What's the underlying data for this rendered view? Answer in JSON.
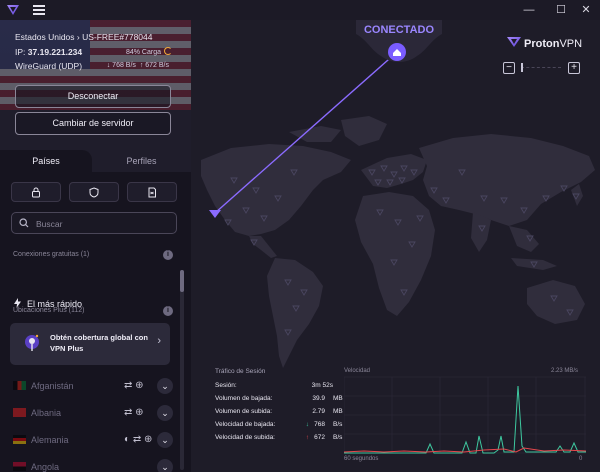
{
  "titlebar": {
    "minimize": "—",
    "maximize": "☐",
    "close": "✕"
  },
  "sidebar": {
    "server_line": "Estados Unidos › US-FREE#778044",
    "ip_label": "IP:",
    "ip_value": "37.19.221.234",
    "load": "84% Carga",
    "protocol": "WireGuard (UDP)",
    "down_rate": "↓ 768 B/s",
    "up_rate": "↑ 672 B/s",
    "disconnect_label": "Desconectar",
    "change_server_label": "Cambiar de servidor",
    "tabs": [
      "Países",
      "Perfiles"
    ],
    "search_placeholder": "Buscar",
    "free_section": "Conexiones gratuitas (1)",
    "fastest_label": "El más rápido",
    "plus_section": "Ubicaciones Plus (112)",
    "upsell_text": "Obtén cobertura global con VPN Plus",
    "countries": [
      {
        "name": "Afganistán",
        "features": "⇄ ⊕"
      },
      {
        "name": "Albania",
        "features": "⇄ ⊕"
      },
      {
        "name": "Alemania",
        "features": "◐ ⇄ ⊕"
      },
      {
        "name": "Angola",
        "features": ""
      }
    ]
  },
  "map": {
    "status": "CONECTADO",
    "brand_proton": "Proton",
    "brand_vpn": "VPN",
    "zoom_out": "−",
    "zoom_in": "+"
  },
  "stats": {
    "title": "Tráfico de Sesión",
    "rows": [
      {
        "label": "Sesión:",
        "value": "3m 52s",
        "unit": ""
      },
      {
        "label": "Volumen de bajada:",
        "value": "39.9",
        "unit": "MB"
      },
      {
        "label": "Volumen de subida:",
        "value": "2.79",
        "unit": "MB"
      },
      {
        "label": "Velocidad de bajada:",
        "value": "768",
        "unit": "B/s"
      },
      {
        "label": "Velocidad de subida:",
        "value": "672",
        "unit": "B/s"
      }
    ],
    "chart_title": "Velocidad",
    "chart_max": "2.23 MB/s",
    "chart_xlabel": "60 segundos",
    "chart_end": "0"
  },
  "colors": {
    "accent": "#8b6bff",
    "download": "#3ec9a0",
    "upload": "#e5484d",
    "load": "#f2a93b"
  }
}
